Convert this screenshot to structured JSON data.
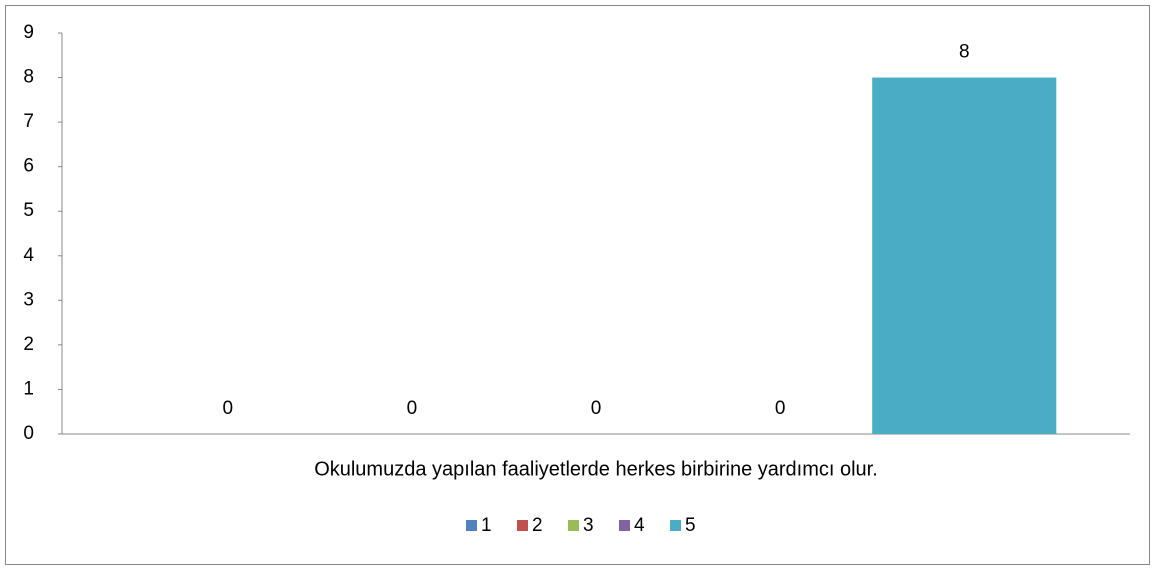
{
  "chart_data": {
    "type": "bar",
    "categories": [
      "Okulumuzda yapılan faaliyetlerde herkes birbirine yardımcı olur."
    ],
    "series": [
      {
        "name": "1",
        "color": "#4f81bd",
        "values": [
          0
        ]
      },
      {
        "name": "2",
        "color": "#c0504d",
        "values": [
          0
        ]
      },
      {
        "name": "3",
        "color": "#9bbb59",
        "values": [
          0
        ]
      },
      {
        "name": "4",
        "color": "#8064a2",
        "values": [
          0
        ]
      },
      {
        "name": "5",
        "color": "#4bacc6",
        "values": [
          8
        ]
      }
    ],
    "ylim": [
      0,
      9
    ],
    "yticks": [
      0,
      1,
      2,
      3,
      4,
      5,
      6,
      7,
      8,
      9
    ],
    "grid": false,
    "data_labels": true,
    "legend": "bottom"
  }
}
